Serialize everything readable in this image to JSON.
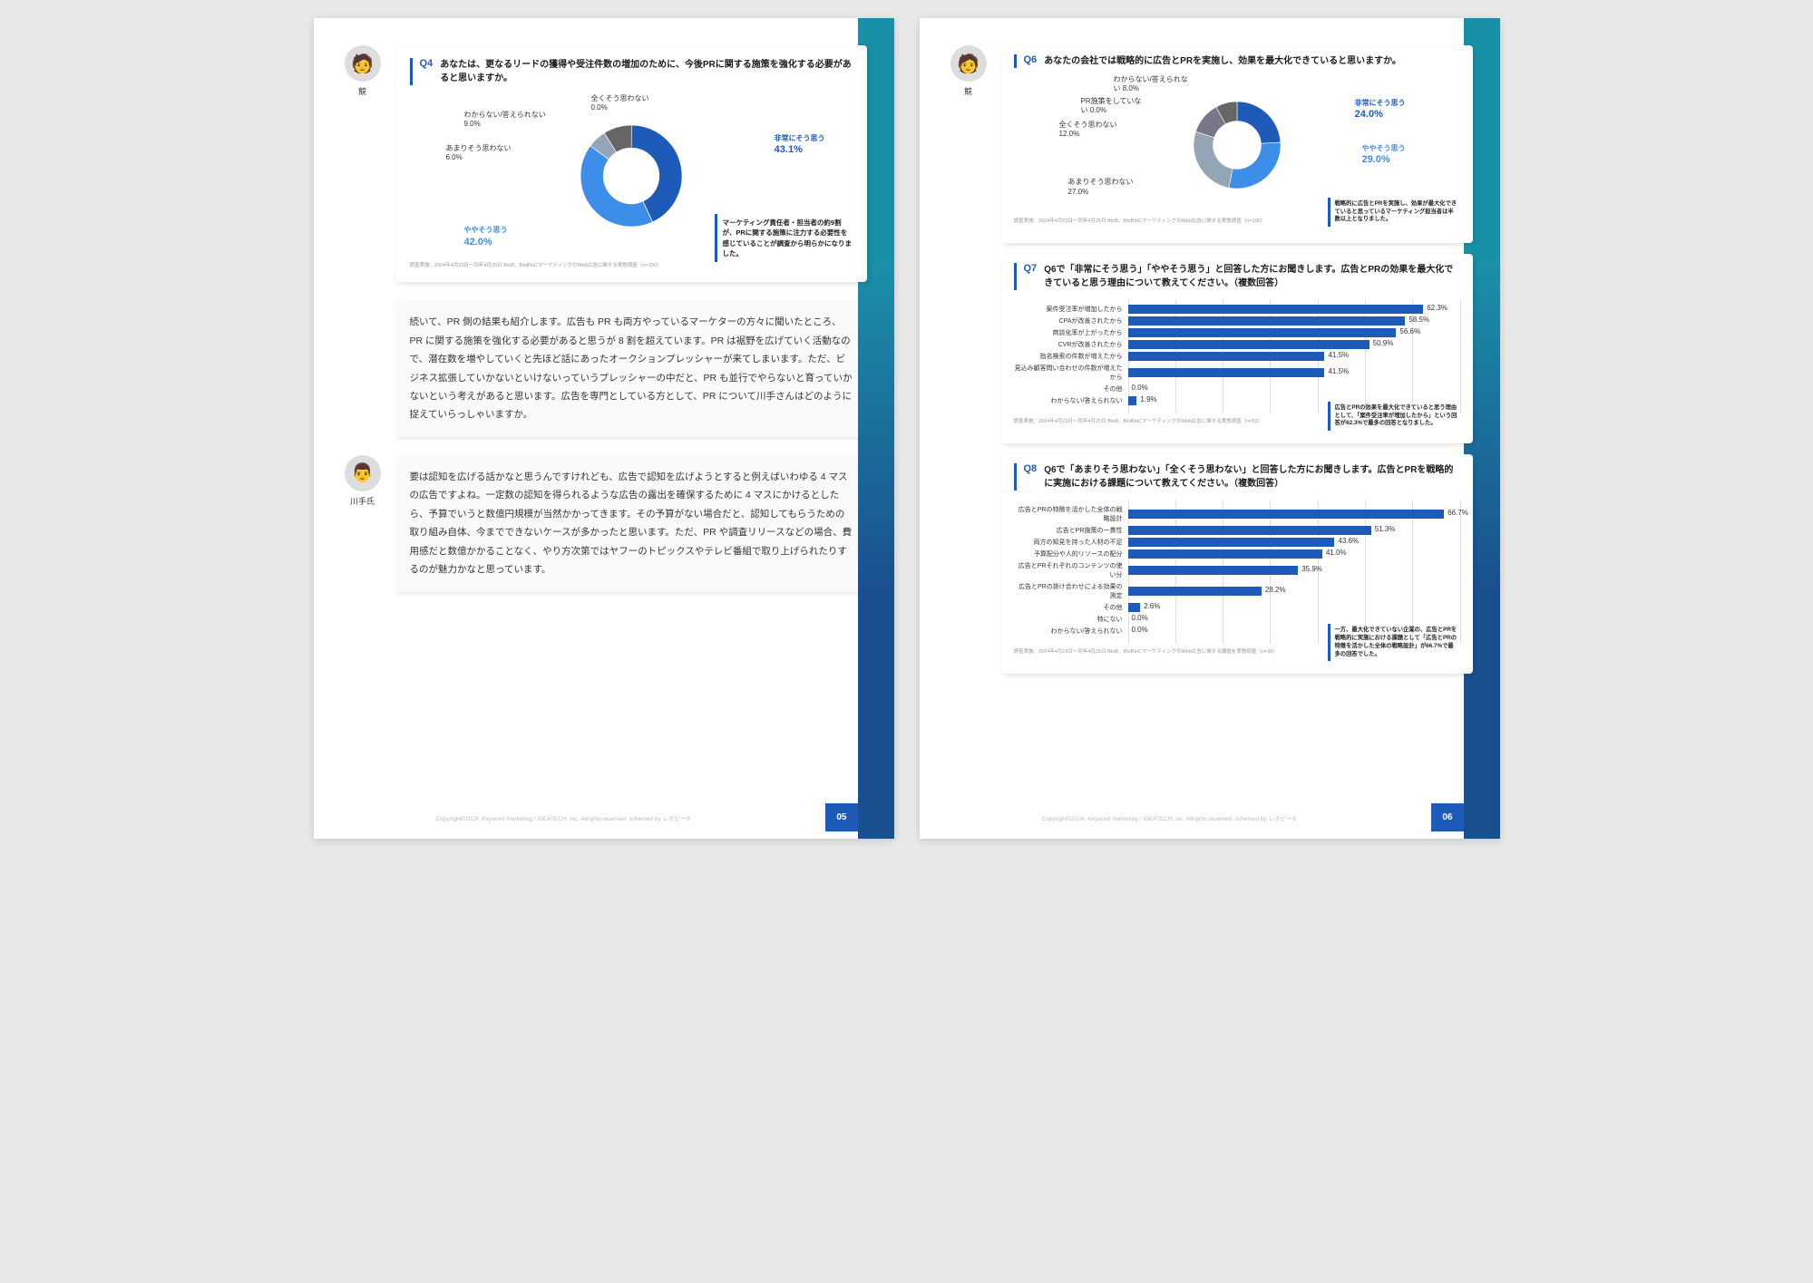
{
  "speakers": {
    "competitor": {
      "name": "競",
      "avatar_bg": "#f0e8e0"
    },
    "kawate": {
      "name": "川手氏",
      "avatar_bg": "#e8ece0"
    }
  },
  "page5": {
    "q4": {
      "num": "Q4",
      "text": "あなたは、更なるリードの獲得や受注件数の増加のために、今後PRに関する施策を強化する必要があると思いますか。",
      "segments": [
        {
          "label": "非常にそう思う",
          "val": 43.1,
          "color": "#1e5bb8"
        },
        {
          "label": "ややそう思う",
          "val": 42.0,
          "color": "#3d8ee8"
        },
        {
          "label": "あまりそう思わない",
          "val": 6.0,
          "color": "#94a5b5"
        },
        {
          "label": "わからない/答えられない",
          "val": 9.0,
          "color": "#666"
        },
        {
          "label": "全くそう思わない",
          "val": 0.0,
          "color": "#ccc"
        }
      ],
      "callout": "マーケティング責任者・担当者の約9割が、PRに関する施策に注力する必要性を感じていることが調査から明らかになりました。",
      "note": "調査実施：2024年4月23日〜同年4月25日\nBtoB、BtoBtoCマーケティングのWeb広告に関する実態調査（n=100）"
    },
    "text1": "続いて、PR 側の結果も紹介します。広告も PR も両方やっているマーケターの方々に聞いたところ、PR に関する施策を強化する必要があると思うが 8 割を超えています。PR は裾野を広げていく活動なので、潜在数を増やしていくと先ほど話にあったオークションプレッシャーが来てしまいます。ただ、ビジネス拡張していかないといけないっていうプレッシャーの中だと、PR も並行でやらないと育っていかないという考えがあると思います。広告を専門としている方として、PR について川手さんはどのように捉えていらっしゃいますか。",
    "text2": "要は認知を広げる話かなと思うんですけれども、広告で認知を広げようとすると例えばいわゆる 4 マスの広告ですよね。一定数の認知を得られるような広告の露出を確保するために 4 マスにかけるとしたら、予算でいうと数億円規模が当然かかってきます。その予算がない場合だと、認知してもらうための取り組み自体、今までできないケースが多かったと思います。ただ、PR や調査リリースなどの場合、費用感だと数億かかることなく、やり方次第ではヤフーのトピックスやテレビ番組で取り上げられたりするのが魅力かなと思っています。",
    "page_num": "05"
  },
  "page6": {
    "q6": {
      "num": "Q6",
      "text": "あなたの会社では戦略的に広告とPRを実施し、効果を最大化できていると思いますか。",
      "segments": [
        {
          "label": "非常にそう思う",
          "val": 24.0,
          "color": "#1e5bb8"
        },
        {
          "label": "ややそう思う",
          "val": 29.0,
          "color": "#3d8ee8"
        },
        {
          "label": "あまりそう思わない",
          "val": 27.0,
          "color": "#94a5b5"
        },
        {
          "label": "全くそう思わない",
          "val": 12.0,
          "color": "#778"
        },
        {
          "label": "PR施策をしていない",
          "val": 0.0,
          "color": "#ccc"
        },
        {
          "label": "わからない/答えられない",
          "val": 8.0,
          "color": "#666"
        }
      ],
      "callout": "戦略的に広告とPRを実施し、効果が最大化できていると思っているマーケティング担当者は半数以上となりました。",
      "note": "調査実施：2024年4月23日〜同年4月25日\nBtoB、BtoBtoCマーケティングのWeb広告に関する実態調査（n=100）"
    },
    "q7": {
      "num": "Q7",
      "text": "Q6で「非常にそう思う」「ややそう思う」と回答した方にお聞きします。広告とPRの効果を最大化できていると思う理由について教えてください。（複数回答）",
      "bars": [
        {
          "label": "案件受注率が増加したから",
          "val": 62.3
        },
        {
          "label": "CPAが改善されたから",
          "val": 58.5
        },
        {
          "label": "商談化率が上がったから",
          "val": 56.6
        },
        {
          "label": "CVRが改善されたから",
          "val": 50.9
        },
        {
          "label": "指名検索の件数が増えたから",
          "val": 41.5
        },
        {
          "label": "見込み顧客問い合わせの件数が増えたから",
          "val": 41.5
        },
        {
          "label": "その他",
          "val": 0.0
        },
        {
          "label": "わからない/答えられない",
          "val": 1.9
        }
      ],
      "subtext": "広告とPRの効果を最大化できていると思う理由として、「案件受注率が増加したから」という回答が62.3%で最多の回答となりました。",
      "note": "調査実施：2024年4月23日〜同年4月25日\nBtoB、BtoBtoCマーケティングのWeb広告に関する実態調査（n=53）"
    },
    "q8": {
      "num": "Q8",
      "text": "Q6で「あまりそう思わない」「全くそう思わない」と回答した方にお聞きします。広告とPRを戦略的に実施における課題について教えてください。（複数回答）",
      "bars": [
        {
          "label": "広告とPRの特徴を活かした全体の戦略設計",
          "val": 66.7
        },
        {
          "label": "広告とPR施策の一貫性",
          "val": 51.3
        },
        {
          "label": "両方の知見を持った人材の不足",
          "val": 43.6
        },
        {
          "label": "予算配分や人的リソースの配分",
          "val": 41.0
        },
        {
          "label": "広告とPRそれぞれのコンテンツの使い分",
          "val": 35.9
        },
        {
          "label": "広告とPRの掛け合わせによる効果の測定",
          "val": 28.2
        },
        {
          "label": "その他",
          "val": 2.6
        },
        {
          "label": "特にない",
          "val": 0.0
        },
        {
          "label": "わからない/答えられない",
          "val": 0.0
        }
      ],
      "subtext": "一方、最大化できていない企業の、広告とPRを戦略的に実施における課題として「広告とPRの特徴を活かした全体の戦略設計」が66.7%で最多の回答でした。",
      "note": "調査実施：2024年4月23日〜同年4月25日\nBtoB、BtoBtoCマーケティングのWeb広告に関する課題を実態調査（n=39）"
    },
    "page_num": "06"
  },
  "copyright": "Copyright©2024. Keyword marketing / IDEATECH. inc. Allrights reserved. schemed by レポビー®"
}
